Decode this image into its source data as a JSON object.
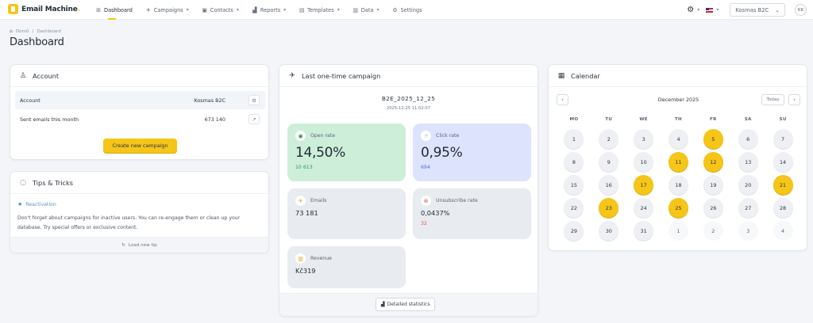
{
  "app": {
    "name": "Email Machine",
    "name_dot": "."
  },
  "nav": {
    "items": [
      {
        "label": "Dashboard",
        "icon": "grid-icon",
        "glyph": "⊞",
        "caret": false,
        "active": true
      },
      {
        "label": "Campaigns",
        "icon": "send-icon",
        "glyph": "✈",
        "caret": true
      },
      {
        "label": "Contacts",
        "icon": "contact-icon",
        "glyph": "▣",
        "caret": true
      },
      {
        "label": "Reports",
        "icon": "bar-chart-icon",
        "glyph": "▟",
        "caret": true
      },
      {
        "label": "Templates",
        "icon": "template-icon",
        "glyph": "▤",
        "caret": true
      },
      {
        "label": "Data",
        "icon": "database-icon",
        "glyph": "▥",
        "caret": true
      },
      {
        "label": "Settings",
        "icon": "gear-icon",
        "glyph": "⚙",
        "caret": false
      }
    ],
    "caret_glyph": "▾"
  },
  "toolbar": {
    "settings_glyph": "⚙",
    "caret_glyph": "▾",
    "account_select": "Kosmas B2C",
    "account_caret": "⌄",
    "avatar_initials": "KK"
  },
  "breadcrumb": {
    "home_glyph": "⌂",
    "home": "Domů",
    "separator": "/",
    "current": "Dashboard"
  },
  "page": {
    "title": "Dashboard"
  },
  "account_card": {
    "title": "Account",
    "icon_glyph": "♙",
    "rows": [
      {
        "label": "Account",
        "value": "Kosmas B2C",
        "action_glyph": "⚙"
      },
      {
        "label": "Sent emails this month",
        "value": "673 140",
        "action_glyph": "↗"
      }
    ],
    "cta_label": "Create new campaign"
  },
  "tips_card": {
    "title": "Tips & Tricks",
    "icon_glyph": "◌",
    "tip_title": "Reactivation",
    "star_glyph": "★",
    "tip_text": "Don't forget about campaigns for inactive users. You can re-engage them or clean up your database. Try special offers or exclusive content.",
    "load_glyph": "↻",
    "load_label": "Load new tip"
  },
  "campaign_card": {
    "title": "Last one-time campaign",
    "icon_glyph": "✈",
    "name": "B2E_2025_12_25",
    "datetime": "2025-12-25 11:02:07",
    "stats": {
      "open": {
        "label": "Open rate",
        "value": "14,50%",
        "sub": "10 613",
        "glyph": "◉",
        "color": "#2e8b57",
        "sub_color": "#2e9d5a"
      },
      "click": {
        "label": "Click rate",
        "value": "0,95%",
        "sub": "694",
        "glyph": "☝",
        "color": "#4a68d8",
        "sub_color": "#4f6fe0"
      },
      "emails": {
        "label": "Emails",
        "value": "73 181",
        "glyph": "✈",
        "color": "#e0a81a"
      },
      "unsub": {
        "label": "Unsubscribe rate",
        "value": "0,0437%",
        "sub": "32",
        "glyph": "⊗",
        "color": "#e05555",
        "sub_color": "#e05555"
      },
      "revenue": {
        "label": "Revenue",
        "value": "Kč319",
        "glyph": "▥",
        "color": "#e0a81a"
      }
    },
    "detail_glyph": "▟",
    "detail_label": "Detailed statistics"
  },
  "calendar": {
    "title": "Calendar",
    "icon_glyph": "▦",
    "month_label": "December 2025",
    "prev_glyph": "‹",
    "next_glyph": "›",
    "today_label": "Today",
    "weekdays": [
      "MO",
      "TU",
      "WE",
      "TH",
      "FR",
      "SA",
      "SU"
    ],
    "days": [
      {
        "d": "1"
      },
      {
        "d": "2"
      },
      {
        "d": "3"
      },
      {
        "d": "4"
      },
      {
        "d": "5",
        "hl": true
      },
      {
        "d": "6"
      },
      {
        "d": "7"
      },
      {
        "d": "8"
      },
      {
        "d": "9"
      },
      {
        "d": "10"
      },
      {
        "d": "11",
        "hl": true
      },
      {
        "d": "12",
        "hl": true
      },
      {
        "d": "13"
      },
      {
        "d": "14"
      },
      {
        "d": "15"
      },
      {
        "d": "16"
      },
      {
        "d": "17",
        "hl": true
      },
      {
        "d": "18"
      },
      {
        "d": "19"
      },
      {
        "d": "20"
      },
      {
        "d": "21",
        "hl": true
      },
      {
        "d": "22"
      },
      {
        "d": "23",
        "hl": true
      },
      {
        "d": "24"
      },
      {
        "d": "25",
        "hl": true
      },
      {
        "d": "26"
      },
      {
        "d": "27"
      },
      {
        "d": "28"
      },
      {
        "d": "29"
      },
      {
        "d": "30"
      },
      {
        "d": "31"
      },
      {
        "d": "1",
        "out": true
      },
      {
        "d": "2",
        "out": true
      },
      {
        "d": "3",
        "out": true
      },
      {
        "d": "4",
        "out": true
      }
    ],
    "colors": {
      "highlight": "#f5c518",
      "default": "#eef0f3"
    }
  }
}
